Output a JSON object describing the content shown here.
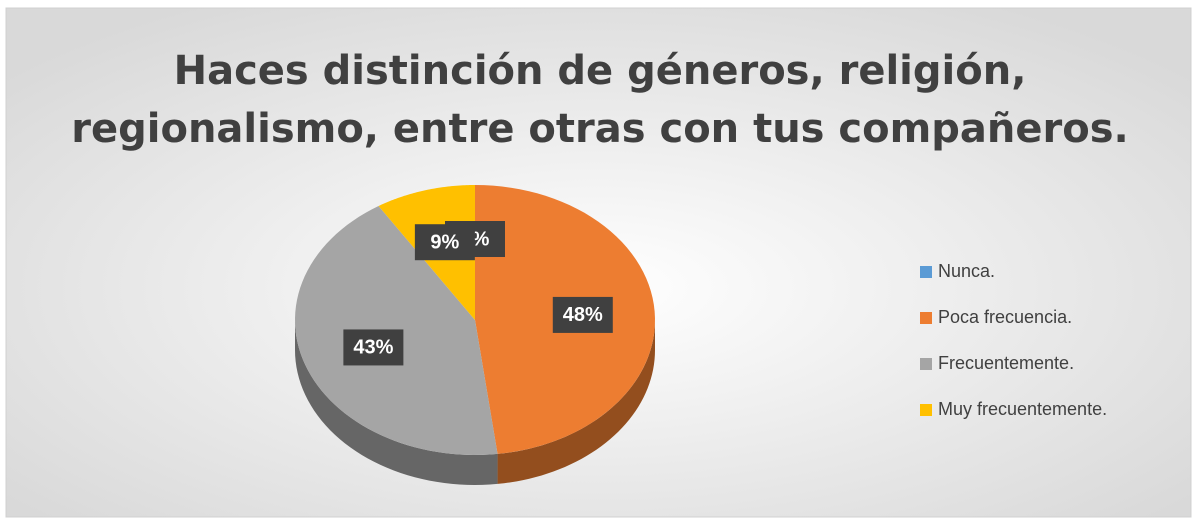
{
  "chart_data": {
    "type": "pie",
    "title": [
      "Haces distinción de géneros, religión,",
      "regionalismo, entre otras con tus compañeros."
    ],
    "categories": [
      "Nunca.",
      "Poca frecuencia.",
      "Frecuentemente.",
      "Muy frecuentemente."
    ],
    "values": [
      0,
      48,
      43,
      9
    ],
    "value_labels": [
      "0%",
      "48%",
      "43%",
      "9%"
    ],
    "colors": [
      "#5b9bd5",
      "#ed7d31",
      "#a5a5a5",
      "#ffc000"
    ],
    "legend": "right"
  }
}
